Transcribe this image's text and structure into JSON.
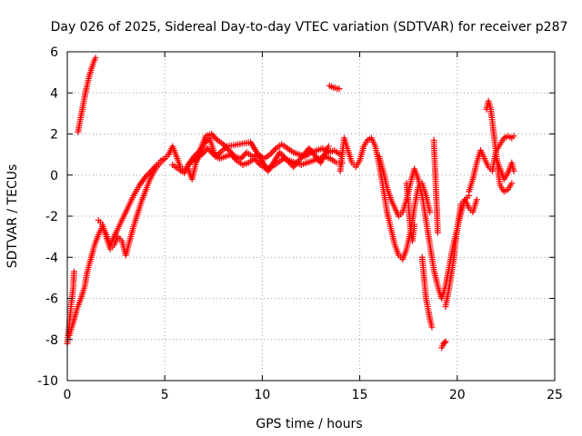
{
  "chart_data": {
    "type": "scatter",
    "title": "Day 026 of 2025, Sidereal Day-to-day VTEC variation (SDTVAR) for receiver p287",
    "xlabel": "GPS time / hours",
    "ylabel": "SDTVAR / TECUs",
    "xlim": [
      0,
      25
    ],
    "ylim": [
      -10,
      6
    ],
    "x_ticks": [
      0,
      5,
      10,
      15,
      20,
      25
    ],
    "y_ticks": [
      -10,
      -8,
      -6,
      -4,
      -2,
      0,
      2,
      4,
      6
    ],
    "grid": true,
    "marker": "+",
    "series_color": "#ff0000",
    "series": [
      {
        "name": "SDTVAR",
        "segments": [
          {
            "x": [
              0.0,
              0.1,
              0.2,
              0.3,
              0.35
            ],
            "y": [
              -8.2,
              -7.3,
              -6.3,
              -5.5,
              -4.7
            ]
          },
          {
            "x": [
              0.1,
              0.3,
              0.5,
              0.7,
              0.9,
              1.0,
              1.2,
              1.4,
              1.6,
              1.8,
              2.0,
              2.2,
              2.5,
              2.8,
              3.1,
              3.4,
              3.7,
              4.0,
              4.3,
              4.6,
              4.8,
              5.0
            ],
            "y": [
              -7.8,
              -7.2,
              -6.5,
              -6.0,
              -5.4,
              -4.8,
              -4.1,
              -3.4,
              -2.9,
              -2.5,
              -2.9,
              -3.4,
              -2.8,
              -2.2,
              -1.6,
              -1.0,
              -0.5,
              -0.1,
              0.2,
              0.5,
              0.7,
              0.8
            ]
          },
          {
            "x": [
              0.55,
              0.65,
              0.75,
              0.85,
              0.95,
              1.05,
              1.15,
              1.25,
              1.35,
              1.45
            ],
            "y": [
              2.1,
              2.6,
              3.1,
              3.6,
              4.1,
              4.5,
              4.9,
              5.2,
              5.5,
              5.7
            ]
          },
          {
            "x": [
              1.6,
              1.8,
              2.0,
              2.2,
              2.4,
              2.6,
              2.8,
              3.0,
              3.2,
              3.4,
              3.6,
              3.8,
              4.0,
              4.2,
              4.4,
              4.6,
              4.8,
              5.0,
              5.2
            ],
            "y": [
              -2.2,
              -2.4,
              -3.0,
              -3.6,
              -3.4,
              -3.0,
              -3.2,
              -3.9,
              -3.2,
              -2.5,
              -1.9,
              -1.3,
              -0.8,
              -0.3,
              0.1,
              0.4,
              0.6,
              0.8,
              1.0
            ]
          },
          {
            "x": [
              5.2,
              5.4,
              5.6,
              5.8,
              6.0,
              6.2,
              6.5,
              6.8,
              7.1,
              7.4,
              7.7,
              8.0,
              8.3,
              8.6,
              8.9,
              9.2,
              9.5,
              9.8,
              10.1,
              10.4,
              10.7,
              11.0,
              11.3,
              11.6,
              11.9,
              12.2,
              12.5,
              12.8,
              13.1,
              13.4,
              13.7,
              14.0
            ],
            "y": [
              1.0,
              1.4,
              0.9,
              0.4,
              0.2,
              0.5,
              0.9,
              1.2,
              1.9,
              2.0,
              1.7,
              1.5,
              1.2,
              0.9,
              0.8,
              1.1,
              0.9,
              1.0,
              0.8,
              1.0,
              1.3,
              1.5,
              1.3,
              1.1,
              1.0,
              0.9,
              1.1,
              1.2,
              1.3,
              1.1,
              1.2,
              1.0
            ]
          },
          {
            "x": [
              5.4,
              5.7,
              6.0,
              6.3,
              6.6,
              6.9,
              7.2,
              7.5,
              7.8,
              8.1,
              8.4,
              8.7,
              9.0,
              9.3,
              9.6,
              9.9,
              10.2,
              10.5,
              10.8,
              11.1,
              11.4,
              11.7,
              12.0,
              12.3,
              12.6,
              12.9,
              13.2,
              13.5,
              13.8,
              14.1
            ],
            "y": [
              0.5,
              0.3,
              0.1,
              0.6,
              0.8,
              1.0,
              1.3,
              1.0,
              0.8,
              0.9,
              1.0,
              0.7,
              0.5,
              0.6,
              0.8,
              0.5,
              0.3,
              0.4,
              0.6,
              0.8,
              0.7,
              0.6,
              0.5,
              0.6,
              0.7,
              0.8,
              0.9,
              0.8,
              0.6,
              0.6
            ]
          },
          {
            "x": [
              6.2,
              6.4,
              6.6,
              7.0,
              7.3,
              7.6,
              8.2,
              9.4,
              10.3,
              10.9,
              11.6,
              12.4,
              13.0,
              13.4
            ],
            "y": [
              0.3,
              -0.2,
              0.6,
              1.5,
              1.8,
              0.9,
              1.4,
              1.6,
              0.2,
              1.1,
              0.4,
              1.3,
              0.6,
              1.4
            ]
          },
          {
            "x": [
              13.45,
              13.55,
              13.65,
              13.75,
              13.85,
              13.95
            ],
            "y": [
              4.35,
              4.3,
              4.25,
              4.25,
              4.2,
              4.2
            ]
          },
          {
            "x": [
              14.0,
              14.2,
              14.4,
              14.6,
              14.8,
              15.0,
              15.2,
              15.4,
              15.6,
              15.8,
              16.0,
              16.2,
              16.4,
              16.6,
              16.8,
              17.0,
              17.2,
              17.4,
              17.6,
              17.8,
              18.0,
              18.2,
              18.4,
              18.6
            ],
            "y": [
              0.2,
              1.8,
              1.2,
              0.6,
              0.4,
              0.7,
              1.4,
              1.7,
              1.8,
              1.4,
              0.5,
              -0.6,
              -1.8,
              -2.6,
              -3.4,
              -3.9,
              -4.1,
              -3.6,
              -2.8,
              -1.6,
              -0.6,
              -0.4,
              -1.0,
              -1.8
            ]
          },
          {
            "x": [
              16.0,
              16.2,
              16.4,
              16.6,
              16.8,
              17.0,
              17.2,
              17.4,
              17.6,
              17.8,
              18.0,
              18.2,
              18.4,
              18.6,
              18.8,
              19.0,
              19.2,
              19.4,
              19.6,
              19.8,
              20.0,
              20.2,
              20.4,
              20.6
            ],
            "y": [
              0.9,
              0.2,
              -0.6,
              -1.2,
              -1.6,
              -2.0,
              -1.8,
              -1.2,
              -0.4,
              0.3,
              -0.2,
              -1.0,
              -2.2,
              -3.4,
              -4.6,
              -5.4,
              -6.0,
              -5.4,
              -4.4,
              -3.4,
              -2.6,
              -1.8,
              -1.2,
              -1.0
            ]
          },
          {
            "x": [
              17.4,
              17.5,
              17.6,
              17.7,
              17.8
            ],
            "y": [
              -0.4,
              -1.4,
              -2.6,
              -3.2,
              -2.4
            ]
          },
          {
            "x": [
              18.2,
              18.3,
              18.4,
              18.5,
              18.6,
              18.7
            ],
            "y": [
              -4.0,
              -5.0,
              -6.0,
              -6.5,
              -7.0,
              -7.4
            ]
          },
          {
            "x": [
              18.8,
              18.85,
              18.9,
              18.95,
              19.0
            ],
            "y": [
              1.7,
              0.6,
              -0.5,
              -1.5,
              -2.8
            ]
          },
          {
            "x": [
              19.2,
              19.25,
              19.3,
              19.35,
              19.4
            ],
            "y": [
              -8.4,
              -8.3,
              -8.2,
              -8.15,
              -8.1
            ]
          },
          {
            "x": [
              19.4,
              19.6,
              19.8,
              20.0,
              20.2,
              20.4,
              20.6,
              20.8,
              21.0
            ],
            "y": [
              -6.4,
              -5.4,
              -4.2,
              -2.6,
              -1.4,
              -1.2,
              -1.6,
              -1.8,
              -1.2
            ]
          },
          {
            "x": [
              20.6,
              20.8,
              21.0,
              21.2,
              21.4,
              21.6,
              21.8,
              22.0,
              22.2,
              22.4,
              22.6,
              22.8,
              22.9
            ],
            "y": [
              -0.8,
              -0.2,
              0.6,
              1.2,
              0.8,
              0.4,
              0.2,
              1.2,
              1.5,
              1.8,
              1.9,
              1.8,
              1.9
            ]
          },
          {
            "x": [
              21.5,
              21.6,
              21.7,
              21.8,
              21.9,
              22.0,
              22.1,
              22.2,
              22.4,
              22.6,
              22.8
            ],
            "y": [
              3.2,
              3.6,
              3.3,
              2.6,
              1.8,
              1.0,
              0.2,
              -0.5,
              -0.8,
              -0.7,
              -0.4
            ]
          },
          {
            "x": [
              22.0,
              22.2,
              22.4,
              22.6,
              22.8,
              22.9
            ],
            "y": [
              0.8,
              0.3,
              -0.2,
              0.1,
              0.6,
              0.2
            ]
          }
        ]
      }
    ]
  }
}
